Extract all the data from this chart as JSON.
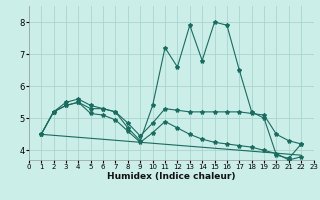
{
  "title": "",
  "xlabel": "Humidex (Indice chaleur)",
  "xlim": [
    0,
    23
  ],
  "ylim": [
    3.7,
    8.5
  ],
  "yticks": [
    4,
    5,
    6,
    7,
    8
  ],
  "xticks": [
    0,
    1,
    2,
    3,
    4,
    5,
    6,
    7,
    8,
    9,
    10,
    11,
    12,
    13,
    14,
    15,
    16,
    17,
    18,
    19,
    20,
    21,
    22,
    23
  ],
  "bg_color": "#cceee8",
  "grid_color": "#aad4ce",
  "line_color": "#1a6b60",
  "lines": [
    {
      "x": [
        1,
        2,
        3,
        4,
        5,
        6,
        7,
        8,
        9,
        10,
        11,
        12,
        13,
        14,
        15,
        16,
        17,
        18,
        19,
        20,
        21,
        22
      ],
      "y": [
        4.5,
        5.2,
        5.5,
        5.6,
        5.4,
        5.3,
        5.2,
        4.7,
        4.3,
        5.4,
        7.2,
        6.6,
        7.9,
        6.8,
        8.0,
        7.9,
        6.5,
        5.2,
        5.0,
        3.85,
        3.75,
        4.2
      ],
      "marker": true
    },
    {
      "x": [
        1,
        2,
        3,
        4,
        5,
        6,
        7,
        8,
        9,
        10,
        11,
        12,
        13,
        14,
        15,
        16,
        17,
        18,
        19,
        20,
        21,
        22
      ],
      "y": [
        4.5,
        5.2,
        5.4,
        5.5,
        5.3,
        5.3,
        5.2,
        4.85,
        4.45,
        4.85,
        5.3,
        5.25,
        5.2,
        5.2,
        5.2,
        5.2,
        5.2,
        5.15,
        5.1,
        4.5,
        4.3,
        4.2
      ],
      "marker": true
    },
    {
      "x": [
        1,
        2,
        3,
        4,
        5,
        6,
        7,
        8,
        9,
        10,
        11,
        12,
        13,
        14,
        15,
        16,
        17,
        18,
        19,
        20,
        21,
        22
      ],
      "y": [
        4.5,
        5.2,
        5.4,
        5.5,
        5.15,
        5.1,
        4.95,
        4.6,
        4.25,
        4.55,
        4.9,
        4.7,
        4.5,
        4.35,
        4.25,
        4.2,
        4.15,
        4.1,
        4.0,
        3.9,
        3.7,
        3.8
      ],
      "marker": true
    },
    {
      "x": [
        1,
        22
      ],
      "y": [
        4.5,
        3.85
      ],
      "marker": false
    }
  ]
}
